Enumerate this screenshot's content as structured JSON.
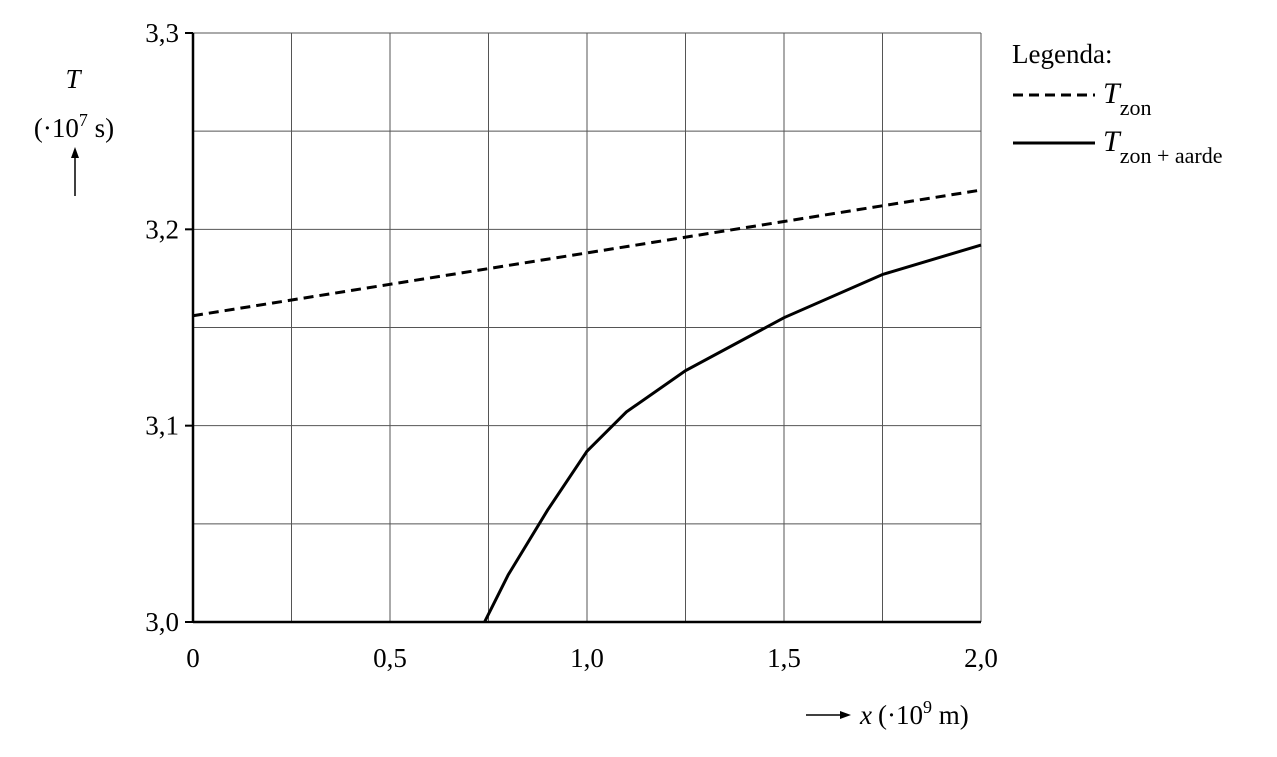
{
  "chart_data": {
    "type": "line",
    "y_label": {
      "symbol": "T",
      "unit": [
        "(·10",
        "7",
        " s)"
      ]
    },
    "x_label": {
      "symbol": "x",
      "unit": [
        "(·10",
        "9",
        " m)"
      ]
    },
    "legend_title": "Legenda:",
    "legend": "top-right",
    "series": [
      {
        "name": [
          "T",
          "zon"
        ],
        "color": "#000000",
        "dashed": true,
        "x": [
          0,
          0.5,
          1.0,
          1.5,
          2.0
        ],
        "values": [
          3.156,
          3.172,
          3.188,
          3.204,
          3.22
        ]
      },
      {
        "name": [
          "T",
          "zon + aarde"
        ],
        "color": "#000000",
        "dashed": false,
        "x": [
          0.74,
          0.76,
          0.8,
          0.9,
          1.0,
          1.1,
          1.25,
          1.5,
          1.75,
          2.0
        ],
        "values": [
          3.0,
          3.008,
          3.024,
          3.057,
          3.087,
          3.107,
          3.128,
          3.155,
          3.177,
          3.192
        ]
      }
    ],
    "xlim": [
      0,
      2.0
    ],
    "ylim": [
      3.0,
      3.3
    ],
    "xticks": [
      {
        "value": 0,
        "label": "0"
      },
      {
        "value": 0.5,
        "label": "0,5"
      },
      {
        "value": 1.0,
        "label": "1,0"
      },
      {
        "value": 1.5,
        "label": "1,5"
      },
      {
        "value": 2.0,
        "label": "2,0"
      }
    ],
    "yticks": [
      {
        "value": 3.0,
        "label": "3,0"
      },
      {
        "value": 3.1,
        "label": "3,1"
      },
      {
        "value": 3.2,
        "label": "3,2"
      },
      {
        "value": 3.3,
        "label": "3,3"
      }
    ],
    "xgrid": [
      0,
      0.25,
      0.5,
      0.75,
      1.0,
      1.25,
      1.5,
      1.75,
      2.0
    ],
    "ygrid": [
      3.0,
      3.05,
      3.1,
      3.15,
      3.2,
      3.25,
      3.3
    ],
    "grid": true
  }
}
